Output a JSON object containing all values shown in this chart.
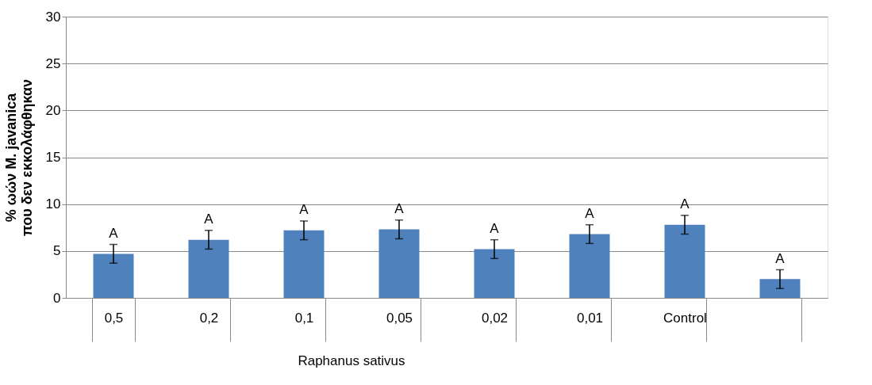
{
  "chart_data": {
    "type": "bar",
    "ylabel": "% ωών M. javanica που δεν εκκολάφθηκαν",
    "categories": [
      "0,5",
      "0,2",
      "0,1",
      "0,05",
      "0,02",
      "0,01",
      "Control",
      null
    ],
    "values": [
      4.7,
      6.2,
      7.2,
      7.3,
      5.2,
      6.8,
      7.8,
      2.0
    ],
    "errors": [
      1.0,
      1.0,
      1.0,
      1.0,
      1.0,
      1.0,
      1.0,
      1.0
    ],
    "value_labels": [
      "A",
      "A",
      "A",
      "A",
      "A",
      "A",
      "A",
      "A"
    ],
    "color": "#4f81bd",
    "ylim": [
      0,
      30
    ],
    "yticks": [
      0,
      5,
      10,
      15,
      20,
      25,
      30
    ],
    "grid": "y",
    "annotations": [
      "Raphanus sativus"
    ]
  }
}
